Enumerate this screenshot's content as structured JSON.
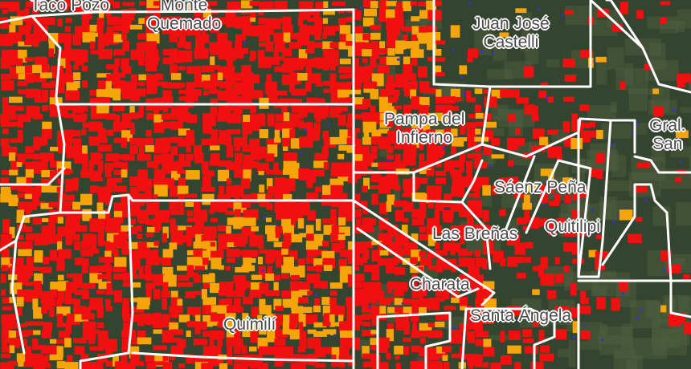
{
  "map": {
    "colors": {
      "land": "#34452f",
      "land_light": "#4f5d3e",
      "loss_red": "#f01010",
      "loss_orange": "#f5a50a",
      "loss_blue": "#3a2fd0",
      "boundary": "#ffffff"
    },
    "labels": [
      {
        "id": "taco-pozo",
        "lines": [
          "Taco Pozo"
        ]
      },
      {
        "id": "monte-quemado",
        "lines": [
          "Monte",
          "Quemado"
        ]
      },
      {
        "id": "juan-jose-castelli",
        "lines": [
          "Juan José",
          "Castelli"
        ]
      },
      {
        "id": "pampa-del-infierno",
        "lines": [
          "Pampa del",
          "Infierno"
        ]
      },
      {
        "id": "gral-san",
        "lines": [
          "Gral.",
          "San"
        ]
      },
      {
        "id": "saenz-pena",
        "lines": [
          "Sáenz Peña"
        ]
      },
      {
        "id": "quitilipi",
        "lines": [
          "Quitilipi"
        ]
      },
      {
        "id": "las-brenas",
        "lines": [
          "Las Breñas"
        ]
      },
      {
        "id": "charata",
        "lines": [
          "Charata"
        ]
      },
      {
        "id": "santa-angela",
        "lines": [
          "Santa Ángela"
        ]
      },
      {
        "id": "quimili",
        "lines": [
          "Quimilí"
        ]
      }
    ]
  }
}
